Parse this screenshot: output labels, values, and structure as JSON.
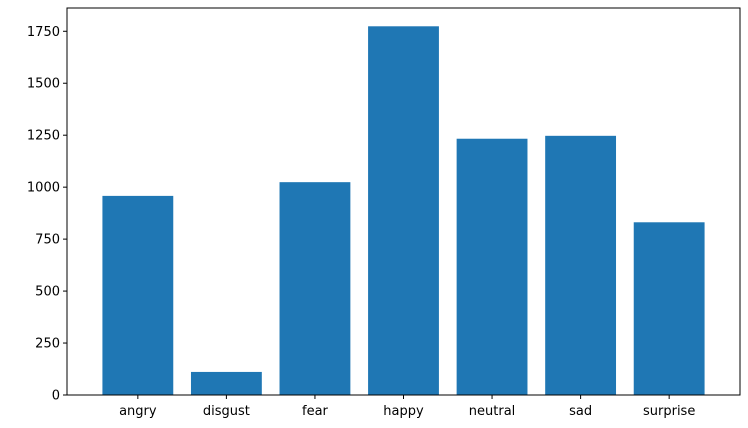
{
  "chart_data": {
    "type": "bar",
    "categories": [
      "angry",
      "disgust",
      "fear",
      "happy",
      "neutral",
      "sad",
      "surprise"
    ],
    "values": [
      958,
      111,
      1024,
      1774,
      1233,
      1247,
      831
    ],
    "ylim": [
      0,
      1862
    ],
    "yticks": [
      0,
      250,
      500,
      750,
      1000,
      1250,
      1500,
      1750
    ],
    "ytick_labels": [
      "0",
      "250",
      "500",
      "750",
      "1000",
      "1250",
      "1500",
      "1750"
    ],
    "bar_color": "#1f77b4",
    "grid": false,
    "legend": "none"
  }
}
